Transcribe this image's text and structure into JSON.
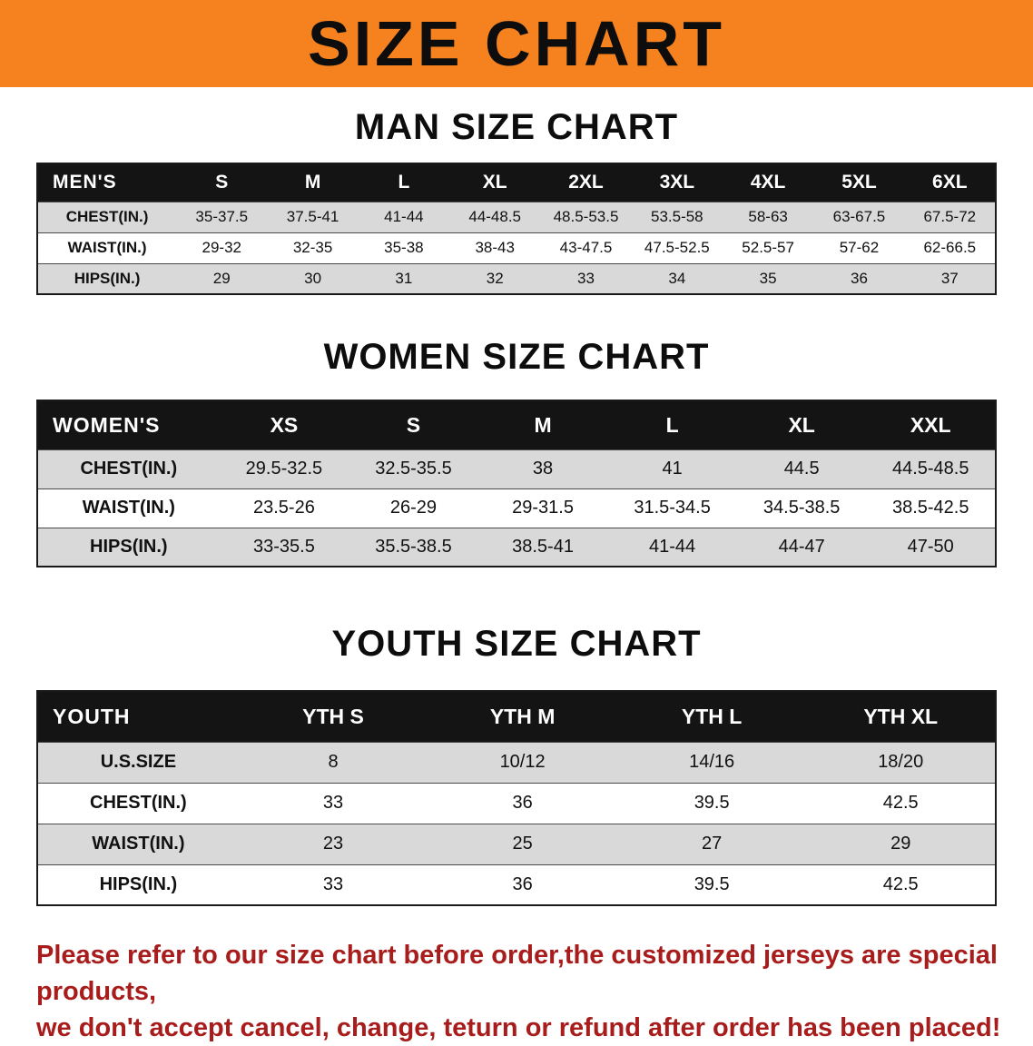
{
  "banner": {
    "title": "SIZE CHART",
    "bg": "#f6821f"
  },
  "sections": [
    {
      "title": "MAN SIZE CHART",
      "table": {
        "header": [
          "MEN'S",
          "S",
          "M",
          "L",
          "XL",
          "2XL",
          "3XL",
          "4XL",
          "5XL",
          "6XL"
        ],
        "rows": [
          [
            "CHEST(IN.)",
            "35-37.5",
            "37.5-41",
            "41-44",
            "44-48.5",
            "48.5-53.5",
            "53.5-58",
            "58-63",
            "63-67.5",
            "67.5-72"
          ],
          [
            "WAIST(IN.)",
            "29-32",
            "32-35",
            "35-38",
            "38-43",
            "43-47.5",
            "47.5-52.5",
            "52.5-57",
            "57-62",
            "62-66.5"
          ],
          [
            "HIPS(IN.)",
            "29",
            "30",
            "31",
            "32",
            "33",
            "34",
            "35",
            "36",
            "37"
          ]
        ]
      }
    },
    {
      "title": "WOMEN SIZE CHART",
      "table": {
        "header": [
          "WOMEN'S",
          "XS",
          "S",
          "M",
          "L",
          "XL",
          "XXL"
        ],
        "rows": [
          [
            "CHEST(IN.)",
            "29.5-32.5",
            "32.5-35.5",
            "38",
            "41",
            "44.5",
            "44.5-48.5"
          ],
          [
            "WAIST(IN.)",
            "23.5-26",
            "26-29",
            "29-31.5",
            "31.5-34.5",
            "34.5-38.5",
            "38.5-42.5"
          ],
          [
            "HIPS(IN.)",
            "33-35.5",
            "35.5-38.5",
            "38.5-41",
            "41-44",
            "44-47",
            "47-50"
          ]
        ]
      }
    },
    {
      "title": "YOUTH SIZE CHART",
      "table": {
        "header": [
          "YOUTH",
          "YTH S",
          "YTH M",
          "YTH L",
          "YTH XL"
        ],
        "rows": [
          [
            "U.S.SIZE",
            "8",
            "10/12",
            "14/16",
            "18/20"
          ],
          [
            "CHEST(IN.)",
            "33",
            "36",
            "39.5",
            "42.5"
          ],
          [
            "WAIST(IN.)",
            "23",
            "25",
            "27",
            "29"
          ],
          [
            "HIPS(IN.)",
            "33",
            "36",
            "39.5",
            "42.5"
          ]
        ]
      }
    }
  ],
  "footer": {
    "color": "#a81c1c",
    "line1": "Please refer to our size chart before order,the customized jerseys are special products,",
    "line2": "we don't accept cancel, change, teturn or refund after order has been placed!"
  }
}
